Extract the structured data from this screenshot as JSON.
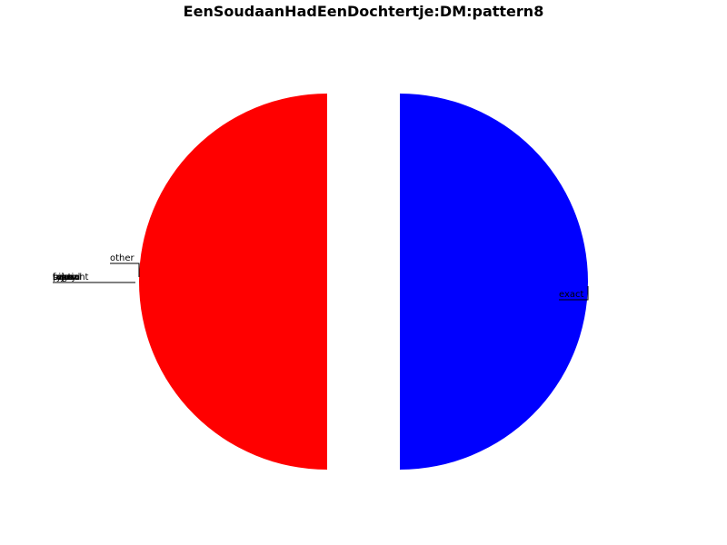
{
  "chart_data": {
    "type": "pie",
    "title": "EenSoudaanHadEenDochtertje:DM:pattern8",
    "slices": [
      {
        "label": "other",
        "value": 0.5,
        "color": "#ff0000",
        "explode": true
      },
      {
        "label": "exact",
        "value": 0.5,
        "color": "#0000ff",
        "explode": true
      },
      {
        "label": "bijna",
        "value": 0,
        "color": "#00c000"
      },
      {
        "label": "fuzzy",
        "value": 0,
        "color": "#00c000"
      },
      {
        "label": "regex",
        "value": 0,
        "color": "#00c000"
      },
      {
        "label": "partial",
        "value": 0,
        "color": "#00c000"
      },
      {
        "label": "typo",
        "value": 0,
        "color": "#00c000"
      },
      {
        "label": "sound",
        "value": 0,
        "color": "#00c000"
      },
      {
        "label": "tolerant",
        "value": 0,
        "color": "#00c000"
      }
    ],
    "legend": false
  }
}
